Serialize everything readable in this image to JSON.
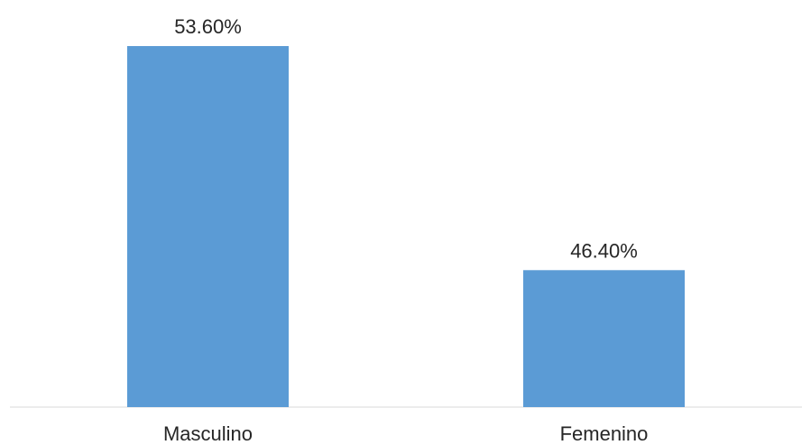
{
  "chart_data": {
    "type": "bar",
    "categories": [
      "Masculino",
      "Femenino"
    ],
    "values": [
      53.6,
      46.4
    ],
    "data_labels": [
      "53.60%",
      "46.40%"
    ],
    "title": "",
    "xlabel": "",
    "ylabel": "",
    "ylim": [
      42,
      54.5
    ],
    "grid": false,
    "legend": "none",
    "bar_color": "#5b9bd5",
    "axis_color": "#d9d9d9"
  }
}
